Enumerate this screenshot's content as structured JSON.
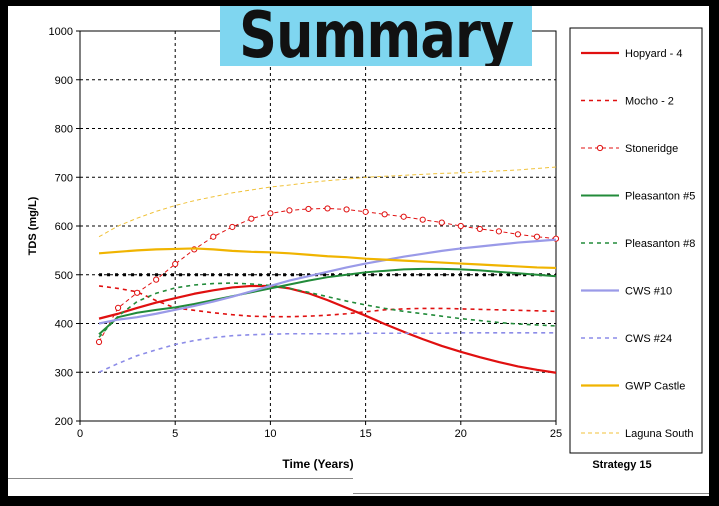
{
  "banner": {
    "title": "Summary"
  },
  "footer": {
    "strategy_label": "Strategy 15"
  },
  "chart_data": {
    "type": "line",
    "title": "",
    "xlabel": "Time (Years)",
    "ylabel": "TDS (mg/L)",
    "xlim": [
      0,
      25
    ],
    "ylim": [
      200,
      1000
    ],
    "x_ticks": [
      0,
      5,
      10,
      15,
      20,
      25
    ],
    "y_ticks": [
      200,
      300,
      400,
      500,
      600,
      700,
      800,
      900,
      1000
    ],
    "grid": "dashed",
    "legend_position": "right",
    "reference_line": {
      "y": 500,
      "style": "dotted",
      "color": "#000000"
    },
    "x": [
      1,
      2,
      3,
      4,
      5,
      6,
      7,
      8,
      9,
      10,
      11,
      12,
      13,
      14,
      15,
      16,
      17,
      18,
      19,
      20,
      21,
      22,
      23,
      24,
      25
    ],
    "series": [
      {
        "name": "Hopyard - 4",
        "color": "#e01010",
        "dash": "solid",
        "width": 2.2,
        "marker": "none",
        "values": [
          410,
          420,
          432,
          443,
          452,
          461,
          468,
          474,
          477,
          477,
          472,
          462,
          448,
          432,
          416,
          399,
          383,
          368,
          354,
          342,
          331,
          321,
          312,
          305,
          299
        ]
      },
      {
        "name": "Mocho - 2",
        "color": "#e01010",
        "dash": "4,4",
        "width": 1.6,
        "marker": "none",
        "values": [
          477,
          472,
          465,
          447,
          432,
          427,
          422,
          418,
          415,
          414,
          414,
          415,
          417,
          420,
          424,
          428,
          430,
          431,
          431,
          430,
          429,
          428,
          427,
          426,
          425
        ]
      },
      {
        "name": "Stoneridge",
        "color": "#e01010",
        "dash": "4,3",
        "width": 1,
        "marker": "circle",
        "values": [
          362,
          432,
          463,
          490,
          522,
          552,
          578,
          598,
          615,
          626,
          632,
          635,
          636,
          634,
          629,
          624,
          619,
          613,
          607,
          600,
          594,
          589,
          583,
          578,
          574
        ]
      },
      {
        "name": "Pleasanton #5",
        "color": "#228b3a",
        "dash": "solid",
        "width": 2,
        "marker": "none",
        "values": [
          378,
          413,
          422,
          428,
          433,
          440,
          448,
          456,
          464,
          472,
          480,
          488,
          495,
          500,
          505,
          508,
          511,
          512,
          512,
          511,
          509,
          506,
          503,
          500,
          497
        ]
      },
      {
        "name": "Pleasanton #8",
        "color": "#228b3a",
        "dash": "4,4",
        "width": 1.6,
        "marker": "none",
        "values": [
          372,
          415,
          445,
          462,
          473,
          479,
          482,
          483,
          481,
          478,
          472,
          464,
          455,
          446,
          438,
          431,
          425,
          420,
          415,
          410,
          406,
          402,
          399,
          397,
          395
        ]
      },
      {
        "name": "CWS #10",
        "color": "#9a9ae8",
        "dash": "solid",
        "width": 2.2,
        "marker": "none",
        "values": [
          400,
          408,
          413,
          420,
          428,
          436,
          445,
          455,
          466,
          477,
          488,
          497,
          506,
          515,
          523,
          530,
          537,
          543,
          549,
          554,
          558,
          562,
          566,
          569,
          572
        ]
      },
      {
        "name": "CWS #24",
        "color": "#8c8ce8",
        "dash": "4,4",
        "width": 1.6,
        "marker": "none",
        "values": [
          300,
          318,
          334,
          346,
          357,
          365,
          371,
          375,
          377,
          378,
          379,
          379,
          379,
          379,
          380,
          380,
          380,
          380,
          380,
          381,
          381,
          381,
          381,
          381,
          381
        ]
      },
      {
        "name": "GWP Castle",
        "color": "#f0b400",
        "dash": "solid",
        "width": 2.2,
        "marker": "none",
        "values": [
          544,
          547,
          550,
          552,
          553,
          554,
          552,
          549,
          547,
          546,
          544,
          541,
          538,
          536,
          533,
          531,
          529,
          527,
          525,
          523,
          521,
          519,
          517,
          515,
          514
        ]
      },
      {
        "name": "Laguna South",
        "color": "#f0c23a",
        "dash": "4,3",
        "width": 1,
        "marker": "none",
        "values": [
          578,
          600,
          616,
          630,
          642,
          652,
          660,
          668,
          674,
          680,
          684,
          689,
          693,
          696,
          700,
          702,
          704,
          706,
          708,
          709,
          711,
          713,
          715,
          718,
          721
        ]
      }
    ]
  }
}
